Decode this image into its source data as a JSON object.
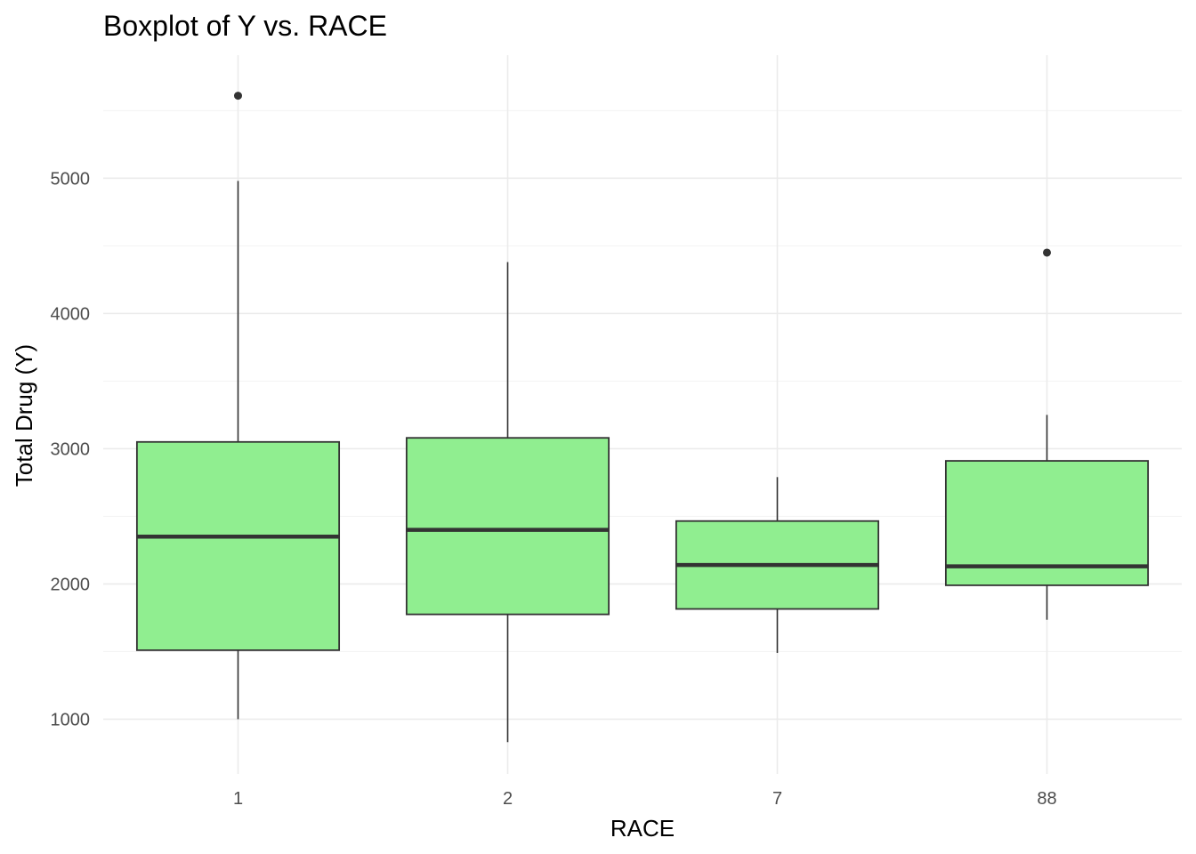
{
  "chart_data": {
    "type": "boxplot",
    "title": "Boxplot of Y vs. RACE",
    "xlabel": "RACE",
    "ylabel": "Total Drug (Y)",
    "categories": [
      "1",
      "2",
      "7",
      "88"
    ],
    "boxes": [
      {
        "category": "1",
        "whisker_low": 1000,
        "q1": 1510,
        "median": 2350,
        "q3": 3050,
        "whisker_high": 4980,
        "outliers": [
          5610
        ]
      },
      {
        "category": "2",
        "whisker_low": 830,
        "q1": 1775,
        "median": 2400,
        "q3": 3080,
        "whisker_high": 4380,
        "outliers": []
      },
      {
        "category": "7",
        "whisker_low": 1490,
        "q1": 1815,
        "median": 2140,
        "q3": 2465,
        "whisker_high": 2790,
        "outliers": []
      },
      {
        "category": "88",
        "whisker_low": 1735,
        "q1": 1990,
        "median": 2130,
        "q3": 2910,
        "whisker_high": 3250,
        "outliers": [
          4450
        ]
      }
    ],
    "yticks": [
      1000,
      2000,
      3000,
      4000,
      5000
    ],
    "yticks_labels": [
      "1000",
      "2000",
      "3000",
      "4000",
      "5000"
    ],
    "ylim": [
      595,
      5910
    ],
    "fill_color": "#90ee90",
    "line_color": "#333333",
    "grid": true,
    "legend": "none"
  }
}
